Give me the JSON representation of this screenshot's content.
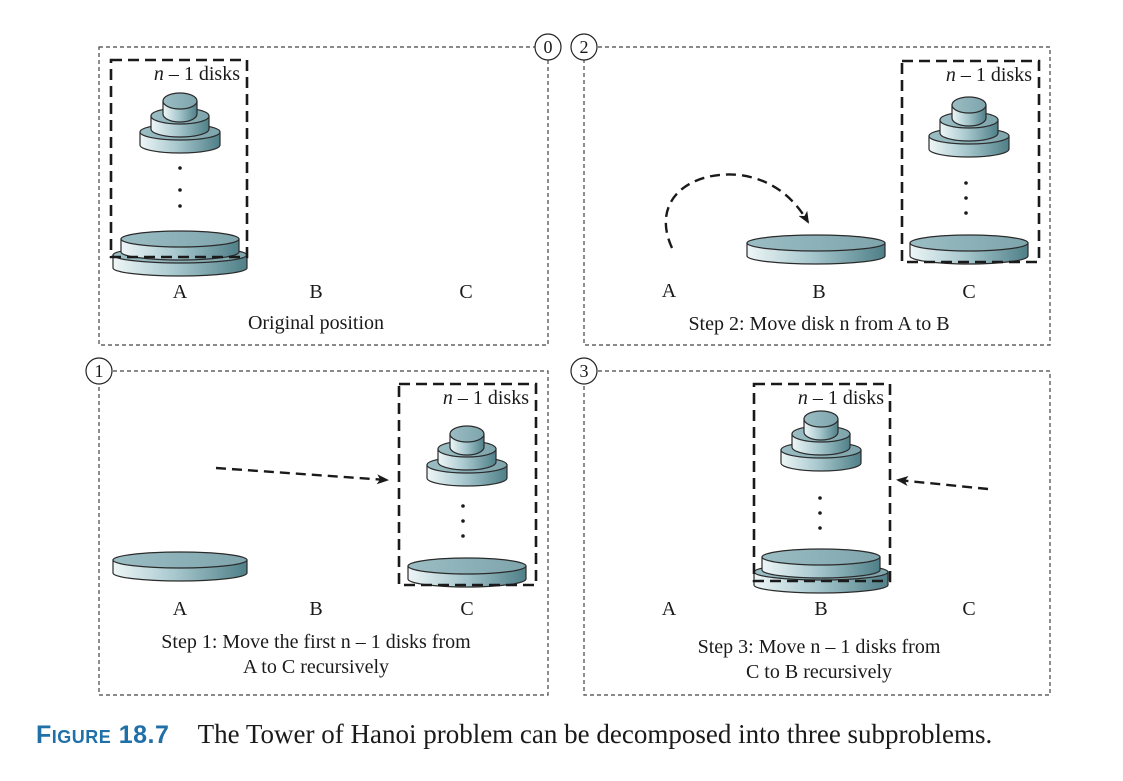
{
  "figure": {
    "label": "Figure 18.7",
    "caption": "The Tower of Hanoi problem can be decomposed into three subproblems."
  },
  "disk_color": {
    "light": "#eef6f7",
    "mid": "#a9c9cf",
    "dark": "#4f7f88",
    "stroke": "#2b2b2b"
  },
  "peg_labels": [
    "A",
    "B",
    "C"
  ],
  "group_label": {
    "italic": "n",
    "rest": " – 1 disks"
  },
  "panels": {
    "p0": {
      "number": "0",
      "caption_lines": [
        "Original position"
      ]
    },
    "p1": {
      "number": "1",
      "caption_lines": [
        "Step 1: Move the first n – 1 disks from",
        "A to C recursively"
      ]
    },
    "p2": {
      "number": "2",
      "caption_lines": [
        "Step 2: Move disk n from A to B"
      ]
    },
    "p3": {
      "number": "3",
      "caption_lines": [
        "Step 3: Move n – 1 disks from",
        "C to B recursively"
      ]
    }
  }
}
